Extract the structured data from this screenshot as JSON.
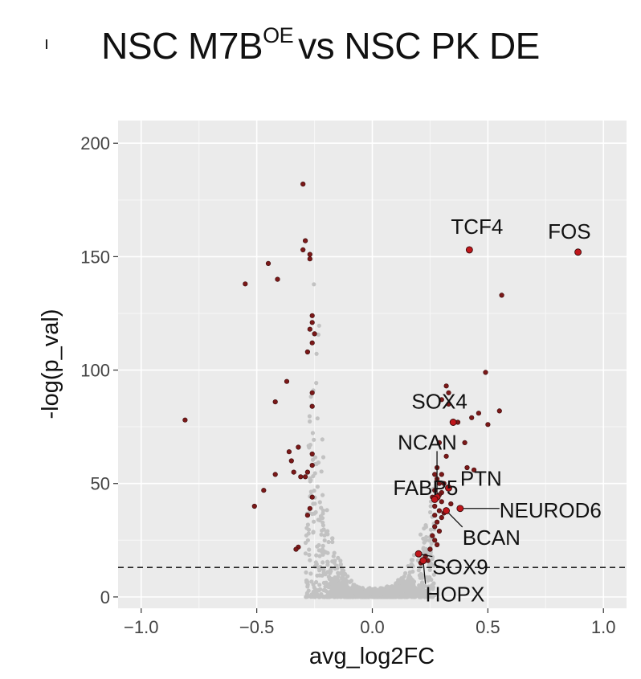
{
  "chart_data": {
    "type": "scatter",
    "title_main": "NSC M7B",
    "title_sup": "OE",
    "title_rest": "vs NSC PK DE",
    "xlabel": "avg_log2FC",
    "ylabel": "-log(p_val)",
    "xlim": [
      -1.1,
      1.1
    ],
    "ylim": [
      -5,
      210
    ],
    "x_ticks": [
      -1.0,
      -0.5,
      0.0,
      0.5,
      1.0
    ],
    "x_tick_labels": [
      "−1.0",
      "−0.5",
      "0.0",
      "0.5",
      "1.0"
    ],
    "y_ticks": [
      0,
      50,
      100,
      150,
      200
    ],
    "y_tick_labels": [
      "0",
      "50",
      "100",
      "150",
      "200"
    ],
    "grid": true,
    "threshold_line_y": 13,
    "colors": {
      "panel": "#ebebeb",
      "grid": "#ffffff",
      "significant": "#7b1818",
      "highlight": "#c0161b",
      "not_significant": "#c2c2c2"
    },
    "labeled_genes": [
      {
        "name": "TCF4",
        "x": 0.42,
        "y": 153,
        "label_x": 0.34,
        "label_y": 160
      },
      {
        "name": "FOS",
        "x": 0.89,
        "y": 152,
        "label_x": 0.76,
        "label_y": 158
      },
      {
        "name": "SOX4",
        "x": 0.35,
        "y": 77,
        "label_x": 0.17,
        "label_y": 83
      },
      {
        "name": "NCAN",
        "x": 0.28,
        "y": 44,
        "label_x": 0.11,
        "label_y": 65
      },
      {
        "name": "FABP5",
        "x": 0.27,
        "y": 43,
        "label_x": 0.09,
        "label_y": 45
      },
      {
        "name": "PTN",
        "x": 0.33,
        "y": 48,
        "label_x": 0.38,
        "label_y": 49
      },
      {
        "name": "NEUROD6",
        "x": 0.38,
        "y": 39,
        "label_x": 0.55,
        "label_y": 35
      },
      {
        "name": "BCAN",
        "x": 0.32,
        "y": 38,
        "label_x": 0.39,
        "label_y": 23
      },
      {
        "name": "SOX9",
        "x": 0.2,
        "y": 19,
        "label_x": 0.26,
        "label_y": 10
      },
      {
        "name": "HOPX",
        "x": 0.22,
        "y": 16,
        "label_x": 0.23,
        "label_y": -2
      }
    ],
    "significant_points": [
      [
        -0.3,
        182
      ],
      [
        -0.29,
        157
      ],
      [
        -0.3,
        153
      ],
      [
        -0.27,
        151
      ],
      [
        -0.27,
        149
      ],
      [
        -0.45,
        147
      ],
      [
        -0.41,
        140
      ],
      [
        -0.55,
        138
      ],
      [
        -0.26,
        124
      ],
      [
        -0.26,
        121
      ],
      [
        -0.27,
        118
      ],
      [
        -0.25,
        116
      ],
      [
        -0.26,
        112
      ],
      [
        -0.28,
        108
      ],
      [
        -0.37,
        95
      ],
      [
        -0.26,
        90
      ],
      [
        -0.42,
        86
      ],
      [
        -0.26,
        84
      ],
      [
        -0.81,
        78
      ],
      [
        -0.32,
        66
      ],
      [
        -0.36,
        64
      ],
      [
        -0.26,
        63
      ],
      [
        -0.35,
        60
      ],
      [
        -0.26,
        58
      ],
      [
        -0.28,
        55
      ],
      [
        -0.34,
        55
      ],
      [
        -0.42,
        54
      ],
      [
        -0.31,
        53
      ],
      [
        -0.29,
        53
      ],
      [
        -0.47,
        47
      ],
      [
        -0.26,
        44
      ],
      [
        -0.51,
        40
      ],
      [
        -0.27,
        39
      ],
      [
        -0.28,
        36
      ],
      [
        -0.32,
        22
      ],
      [
        -0.33,
        21
      ],
      [
        0.56,
        133
      ],
      [
        0.49,
        99
      ],
      [
        0.32,
        93
      ],
      [
        0.33,
        90
      ],
      [
        0.3,
        87
      ],
      [
        0.33,
        85
      ],
      [
        0.55,
        82
      ],
      [
        0.46,
        81
      ],
      [
        0.43,
        79
      ],
      [
        0.37,
        77
      ],
      [
        0.5,
        76
      ],
      [
        0.29,
        68
      ],
      [
        0.4,
        68
      ],
      [
        0.32,
        62
      ],
      [
        0.41,
        57
      ],
      [
        0.44,
        56
      ],
      [
        0.28,
        57
      ],
      [
        0.27,
        54
      ],
      [
        0.3,
        54
      ],
      [
        0.28,
        52
      ],
      [
        0.29,
        50
      ],
      [
        0.31,
        50
      ],
      [
        0.27,
        47
      ],
      [
        0.3,
        46
      ],
      [
        0.29,
        45
      ],
      [
        0.26,
        44
      ],
      [
        0.3,
        42
      ],
      [
        0.34,
        41
      ],
      [
        0.27,
        40
      ],
      [
        0.29,
        38
      ],
      [
        0.31,
        37
      ],
      [
        0.27,
        36
      ],
      [
        0.3,
        35
      ],
      [
        0.28,
        33
      ],
      [
        0.27,
        31
      ],
      [
        0.29,
        29
      ],
      [
        0.26,
        27
      ],
      [
        0.27,
        25
      ],
      [
        0.28,
        23
      ],
      [
        0.25,
        21
      ],
      [
        0.23,
        18
      ],
      [
        0.24,
        16
      ],
      [
        0.21,
        15
      ]
    ]
  }
}
